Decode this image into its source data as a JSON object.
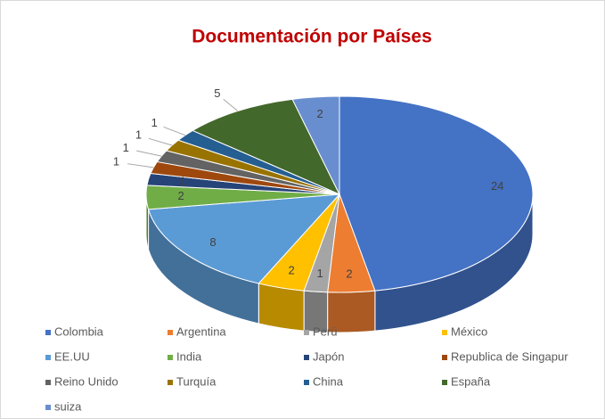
{
  "chart_data": {
    "type": "pie",
    "title": "Documentación por Países",
    "categories": [
      "Colombia",
      "Argentina",
      "Perú",
      "México",
      "EE.UU",
      "India",
      "Japón",
      "Republica de Singapur",
      "Reino Unido",
      "Turquía",
      "China",
      "España",
      "suiza"
    ],
    "values": [
      24,
      2,
      1,
      2,
      8,
      2,
      1,
      1,
      1,
      1,
      1,
      5,
      2
    ],
    "colors": [
      "#4472c4",
      "#ed7d31",
      "#a5a5a5",
      "#ffc000",
      "#5b9bd5",
      "#70ad47",
      "#264478",
      "#9e480e",
      "#636363",
      "#997300",
      "#255e91",
      "#43682b",
      "#698ed0"
    ],
    "legend": "bottom"
  }
}
